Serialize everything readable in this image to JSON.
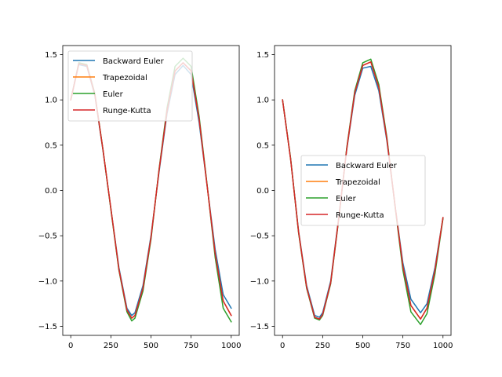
{
  "chart_data": [
    {
      "type": "line",
      "title": "",
      "xlabel": "",
      "ylabel": "",
      "xlim": [
        -50,
        1050
      ],
      "ylim": [
        -1.6,
        1.6
      ],
      "xticks": [
        0,
        250,
        500,
        750,
        1000
      ],
      "xtick_labels": [
        "0",
        "250",
        "500",
        "750",
        "1000"
      ],
      "yticks": [
        -1.5,
        -1.0,
        -0.5,
        0.0,
        0.5,
        1.0,
        1.5
      ],
      "ytick_labels": [
        "−1.5",
        "−1.0",
        "−0.5",
        "0.0",
        "0.5",
        "1.0",
        "1.5"
      ],
      "legend_position": "upper left",
      "x": [
        0,
        50,
        100,
        150,
        200,
        250,
        300,
        350,
        380,
        400,
        450,
        500,
        550,
        600,
        650,
        700,
        750,
        800,
        850,
        900,
        950,
        1000
      ],
      "series": [
        {
          "name": "Backward Euler",
          "color": "#1f77b4",
          "values": [
            1.0,
            1.39,
            1.37,
            1.05,
            0.45,
            -0.2,
            -0.85,
            -1.3,
            -1.38,
            -1.35,
            -1.05,
            -0.5,
            0.2,
            0.85,
            1.28,
            1.38,
            1.28,
            0.75,
            0.05,
            -0.65,
            -1.15,
            -1.3
          ]
        },
        {
          "name": "Trapezoidal",
          "color": "#ff7f0e",
          "values": [
            1.0,
            1.4,
            1.38,
            1.06,
            0.46,
            -0.2,
            -0.87,
            -1.32,
            -1.41,
            -1.38,
            -1.08,
            -0.52,
            0.22,
            0.88,
            1.32,
            1.41,
            1.32,
            0.79,
            0.05,
            -0.7,
            -1.22,
            -1.38
          ]
        },
        {
          "name": "Euler",
          "color": "#2ca02c",
          "values": [
            1.0,
            1.41,
            1.39,
            1.07,
            0.46,
            -0.21,
            -0.88,
            -1.34,
            -1.44,
            -1.41,
            -1.11,
            -0.54,
            0.23,
            0.91,
            1.37,
            1.46,
            1.37,
            0.82,
            0.06,
            -0.74,
            -1.3,
            -1.45
          ]
        },
        {
          "name": "Runge-Kutta",
          "color": "#d62728",
          "values": [
            1.0,
            1.4,
            1.38,
            1.06,
            0.46,
            -0.2,
            -0.87,
            -1.32,
            -1.41,
            -1.38,
            -1.08,
            -0.52,
            0.22,
            0.88,
            1.32,
            1.41,
            1.32,
            0.79,
            0.05,
            -0.7,
            -1.22,
            -1.38
          ]
        }
      ]
    },
    {
      "type": "line",
      "title": "",
      "xlabel": "",
      "ylabel": "",
      "xlim": [
        -50,
        1050
      ],
      "ylim": [
        -1.6,
        1.6
      ],
      "xticks": [
        0,
        250,
        500,
        750,
        1000
      ],
      "xtick_labels": [
        "0",
        "250",
        "500",
        "750",
        "1000"
      ],
      "yticks": [
        -1.5,
        -1.0,
        -0.5,
        0.0,
        0.5,
        1.0,
        1.5
      ],
      "ytick_labels": [
        "−1.5",
        "−1.0",
        "−0.5",
        "0.0",
        "0.5",
        "1.0",
        "1.5"
      ],
      "legend_position": "center",
      "x": [
        0,
        50,
        100,
        150,
        200,
        230,
        250,
        300,
        350,
        400,
        450,
        500,
        550,
        600,
        650,
        700,
        750,
        800,
        860,
        900,
        950,
        1000
      ],
      "series": [
        {
          "name": "Backward Euler",
          "color": "#1f77b4",
          "values": [
            1.0,
            0.35,
            -0.45,
            -1.05,
            -1.38,
            -1.4,
            -1.35,
            -1.0,
            -0.3,
            0.45,
            1.05,
            1.35,
            1.37,
            1.1,
            0.55,
            -0.15,
            -0.8,
            -1.2,
            -1.35,
            -1.25,
            -0.85,
            -0.3
          ]
        },
        {
          "name": "Trapezoidal",
          "color": "#ff7f0e",
          "values": [
            1.0,
            0.35,
            -0.46,
            -1.07,
            -1.4,
            -1.42,
            -1.37,
            -1.02,
            -0.31,
            0.46,
            1.08,
            1.38,
            1.42,
            1.14,
            0.57,
            -0.15,
            -0.84,
            -1.27,
            -1.42,
            -1.3,
            -0.88,
            -0.3
          ]
        },
        {
          "name": "Euler",
          "color": "#2ca02c",
          "values": [
            1.0,
            0.36,
            -0.47,
            -1.08,
            -1.41,
            -1.43,
            -1.38,
            -1.03,
            -0.32,
            0.47,
            1.1,
            1.41,
            1.45,
            1.17,
            0.59,
            -0.16,
            -0.88,
            -1.34,
            -1.48,
            -1.36,
            -0.92,
            -0.31
          ]
        },
        {
          "name": "Runge-Kutta",
          "color": "#d62728",
          "values": [
            1.0,
            0.35,
            -0.46,
            -1.07,
            -1.4,
            -1.42,
            -1.37,
            -1.02,
            -0.31,
            0.46,
            1.08,
            1.38,
            1.42,
            1.14,
            0.57,
            -0.15,
            -0.84,
            -1.27,
            -1.42,
            -1.3,
            -0.88,
            -0.3
          ]
        }
      ]
    }
  ]
}
